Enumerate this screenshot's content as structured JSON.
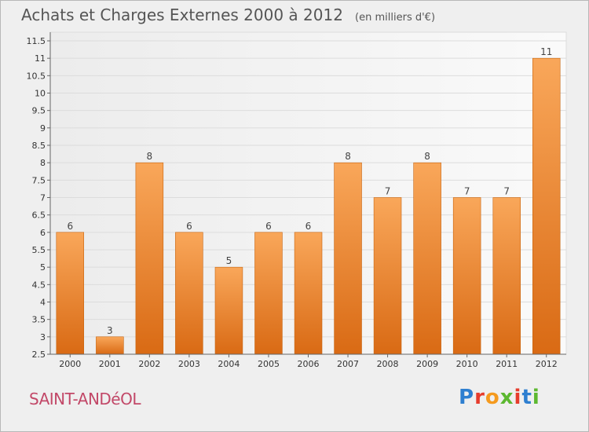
{
  "title": "Achats et Charges Externes 2000 à 2012",
  "subtitle": "(en milliers d'€)",
  "commune": "SAINT-ANDéOL",
  "logo": {
    "text": "Proxiti",
    "colors": [
      "#2e7fd0",
      "#e63c2c",
      "#f59a1e",
      "#5cb830",
      "#e63c2c",
      "#2e7fd0",
      "#5cb830"
    ]
  },
  "chart_data": {
    "type": "bar",
    "categories": [
      "2000",
      "2001",
      "2002",
      "2003",
      "2004",
      "2005",
      "2006",
      "2007",
      "2008",
      "2009",
      "2010",
      "2011",
      "2012"
    ],
    "values": [
      6,
      3,
      8,
      6,
      5,
      6,
      6,
      8,
      7,
      8,
      7,
      7,
      11
    ],
    "data_labels": [
      "6",
      "3",
      "8",
      "6",
      "5",
      "6",
      "6",
      "8",
      "7",
      "8",
      "7",
      "7",
      "11"
    ],
    "title": "Achats et Charges Externes 2000 à 2012",
    "subtitle": "(en milliers d'€)",
    "xlabel": "",
    "ylabel": "",
    "ylim": [
      2.5,
      11.5
    ],
    "yticks": [
      2.5,
      3,
      3.5,
      4,
      4.5,
      5,
      5.5,
      6,
      6.5,
      7,
      7.5,
      8,
      8.5,
      9,
      9.5,
      10,
      10.5,
      11,
      11.5
    ],
    "ytick_labels": [
      "2.5",
      "3",
      "3.5",
      "4",
      "4.5",
      "5",
      "5.5",
      "6",
      "6.5",
      "7",
      "7.5",
      "8",
      "8.5",
      "9",
      "9.5",
      "10",
      "10.5",
      "11",
      "11.5"
    ],
    "grid": true,
    "legend": "none",
    "bar_color": "#f0923a"
  }
}
